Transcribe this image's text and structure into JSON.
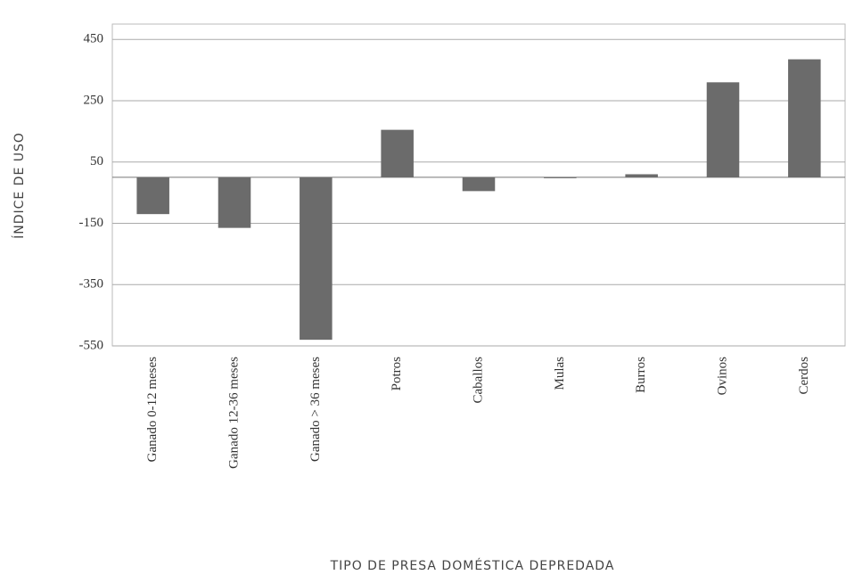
{
  "chart_data": {
    "type": "bar",
    "ylabel": "ÍNDICE DE USO",
    "xlabel": "TIPO DE PRESA DOMÉSTICA DEPREDADA",
    "categories": [
      "Ganado 0-12 meses",
      "Ganado 12-36 meses",
      "Ganado > 36 meses",
      "Potros",
      "Caballos",
      "Mulas",
      "Burros",
      "Ovinos",
      "Cerdos"
    ],
    "values": [
      -120,
      -165,
      -530,
      155,
      -45,
      -2,
      10,
      310,
      385
    ],
    "color": "#6b6b6b",
    "ylim": [
      -550,
      500
    ],
    "yticks": [
      -550,
      -350,
      -150,
      50,
      250,
      450
    ],
    "grid": true
  }
}
